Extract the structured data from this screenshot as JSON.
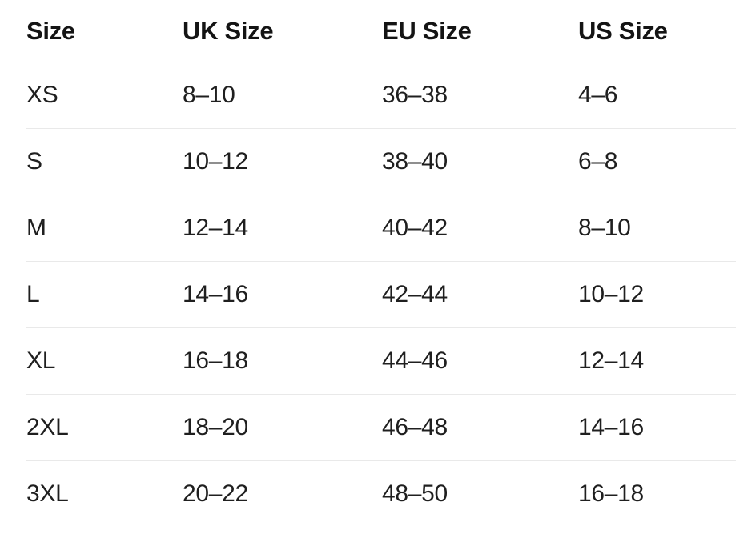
{
  "colors": {
    "text": "#1f1f1f",
    "header_text": "#141414",
    "divider": "#e9e9e9",
    "background": "#ffffff"
  },
  "table": {
    "columns": [
      "Size",
      "UK Size",
      "EU Size",
      "US Size"
    ],
    "rows": [
      {
        "size": "XS",
        "uk": "8–10",
        "eu": "36–38",
        "us": "4–6"
      },
      {
        "size": "S",
        "uk": "10–12",
        "eu": "38–40",
        "us": "6–8"
      },
      {
        "size": "M",
        "uk": "12–14",
        "eu": "40–42",
        "us": "8–10"
      },
      {
        "size": "L",
        "uk": "14–16",
        "eu": "42–44",
        "us": "10–12"
      },
      {
        "size": "XL",
        "uk": "16–18",
        "eu": "44–46",
        "us": "12–14"
      },
      {
        "size": "2XL",
        "uk": "18–20",
        "eu": "46–48",
        "us": "14–16"
      },
      {
        "size": "3XL",
        "uk": "20–22",
        "eu": "48–50",
        "us": "16–18"
      }
    ]
  }
}
